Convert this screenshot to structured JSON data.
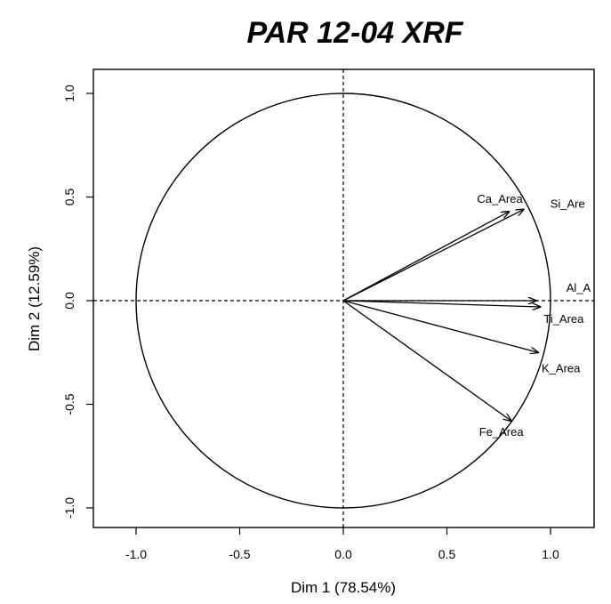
{
  "chart_data": {
    "type": "scatter",
    "subtype": "pca-variable-correlation-circle",
    "title": "PAR 12-04 XRF",
    "xlabel": "Dim 1 (78.54%)",
    "ylabel": "Dim 2 (12.59%)",
    "xlim": [
      -1.0,
      1.0
    ],
    "ylim": [
      -1.0,
      1.0
    ],
    "x_ticks": [
      -1.0,
      -0.5,
      0.0,
      0.5,
      1.0
    ],
    "y_ticks": [
      -1.0,
      -0.5,
      0.0,
      0.5,
      1.0
    ],
    "x_tick_labels": [
      "-1.0",
      "-0.5",
      "0.0",
      "0.5",
      "1.0"
    ],
    "y_tick_labels": [
      "-1.0",
      "-0.5",
      "0.0",
      "0.5",
      "1.0"
    ],
    "grid": false,
    "unit_circle": true,
    "reference_lines": "dashed lines at x=0 and y=0",
    "variables": [
      {
        "label": "Ca_Area",
        "x": 0.8,
        "y": 0.43
      },
      {
        "label": "Si_Are",
        "x": 0.87,
        "y": 0.44
      },
      {
        "label": "Al_A",
        "x": 0.93,
        "y": 0.0
      },
      {
        "label": "Ti_Area",
        "x": 0.95,
        "y": -0.03
      },
      {
        "label": "K_Area",
        "x": 0.94,
        "y": -0.25
      },
      {
        "label": "Fe_Area",
        "x": 0.81,
        "y": -0.58
      }
    ]
  }
}
